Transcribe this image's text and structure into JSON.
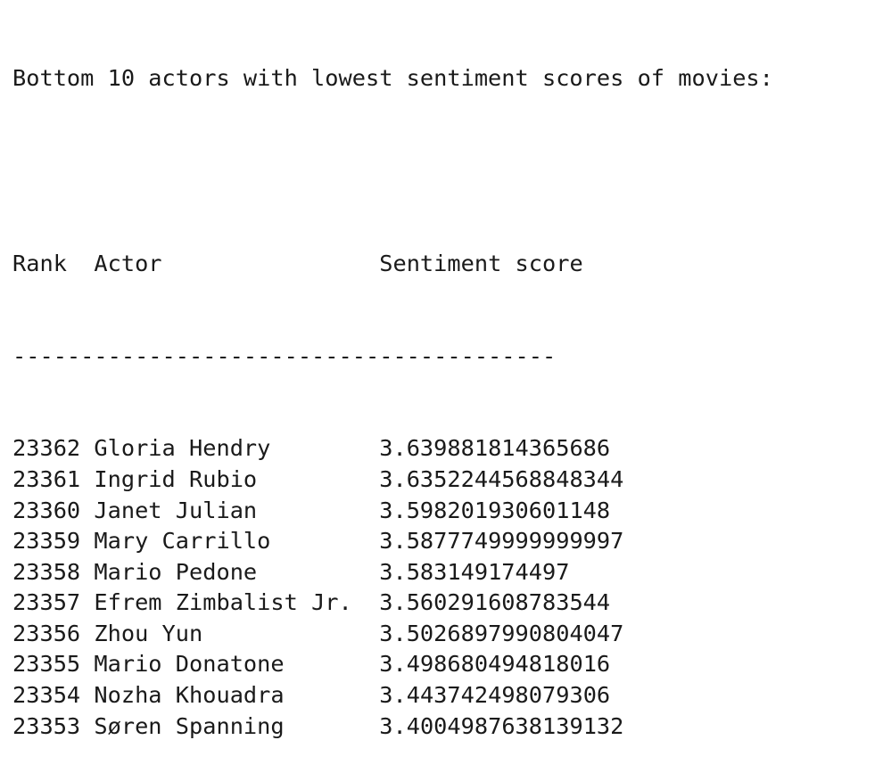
{
  "output": {
    "title": "Bottom 10 actors with lowest sentiment scores of movies:",
    "header": {
      "rank": "Rank",
      "actor": "Actor",
      "score": "Sentiment score"
    },
    "separator": "----------------------------------------",
    "rows": [
      {
        "rank": "23362",
        "actor": "Gloria Hendry",
        "score": "3.639881814365686"
      },
      {
        "rank": "23361",
        "actor": "Ingrid Rubio",
        "score": "3.6352244568848344"
      },
      {
        "rank": "23360",
        "actor": "Janet Julian",
        "score": "3.598201930601148"
      },
      {
        "rank": "23359",
        "actor": "Mary Carrillo",
        "score": "3.5877749999999997"
      },
      {
        "rank": "23358",
        "actor": "Mario Pedone",
        "score": "3.583149174497"
      },
      {
        "rank": "23357",
        "actor": "Efrem Zimbalist Jr.",
        "score": "3.560291608783544"
      },
      {
        "rank": "23356",
        "actor": "Zhou Yun",
        "score": "3.5026897990804047"
      },
      {
        "rank": "23355",
        "actor": "Mario Donatone",
        "score": "3.498680494818016"
      },
      {
        "rank": "23354",
        "actor": "Nozha Khouadra",
        "score": "3.443742498079306"
      },
      {
        "rank": "23353",
        "actor": "Søren Spanning",
        "score": "3.4004987638139132"
      }
    ]
  }
}
